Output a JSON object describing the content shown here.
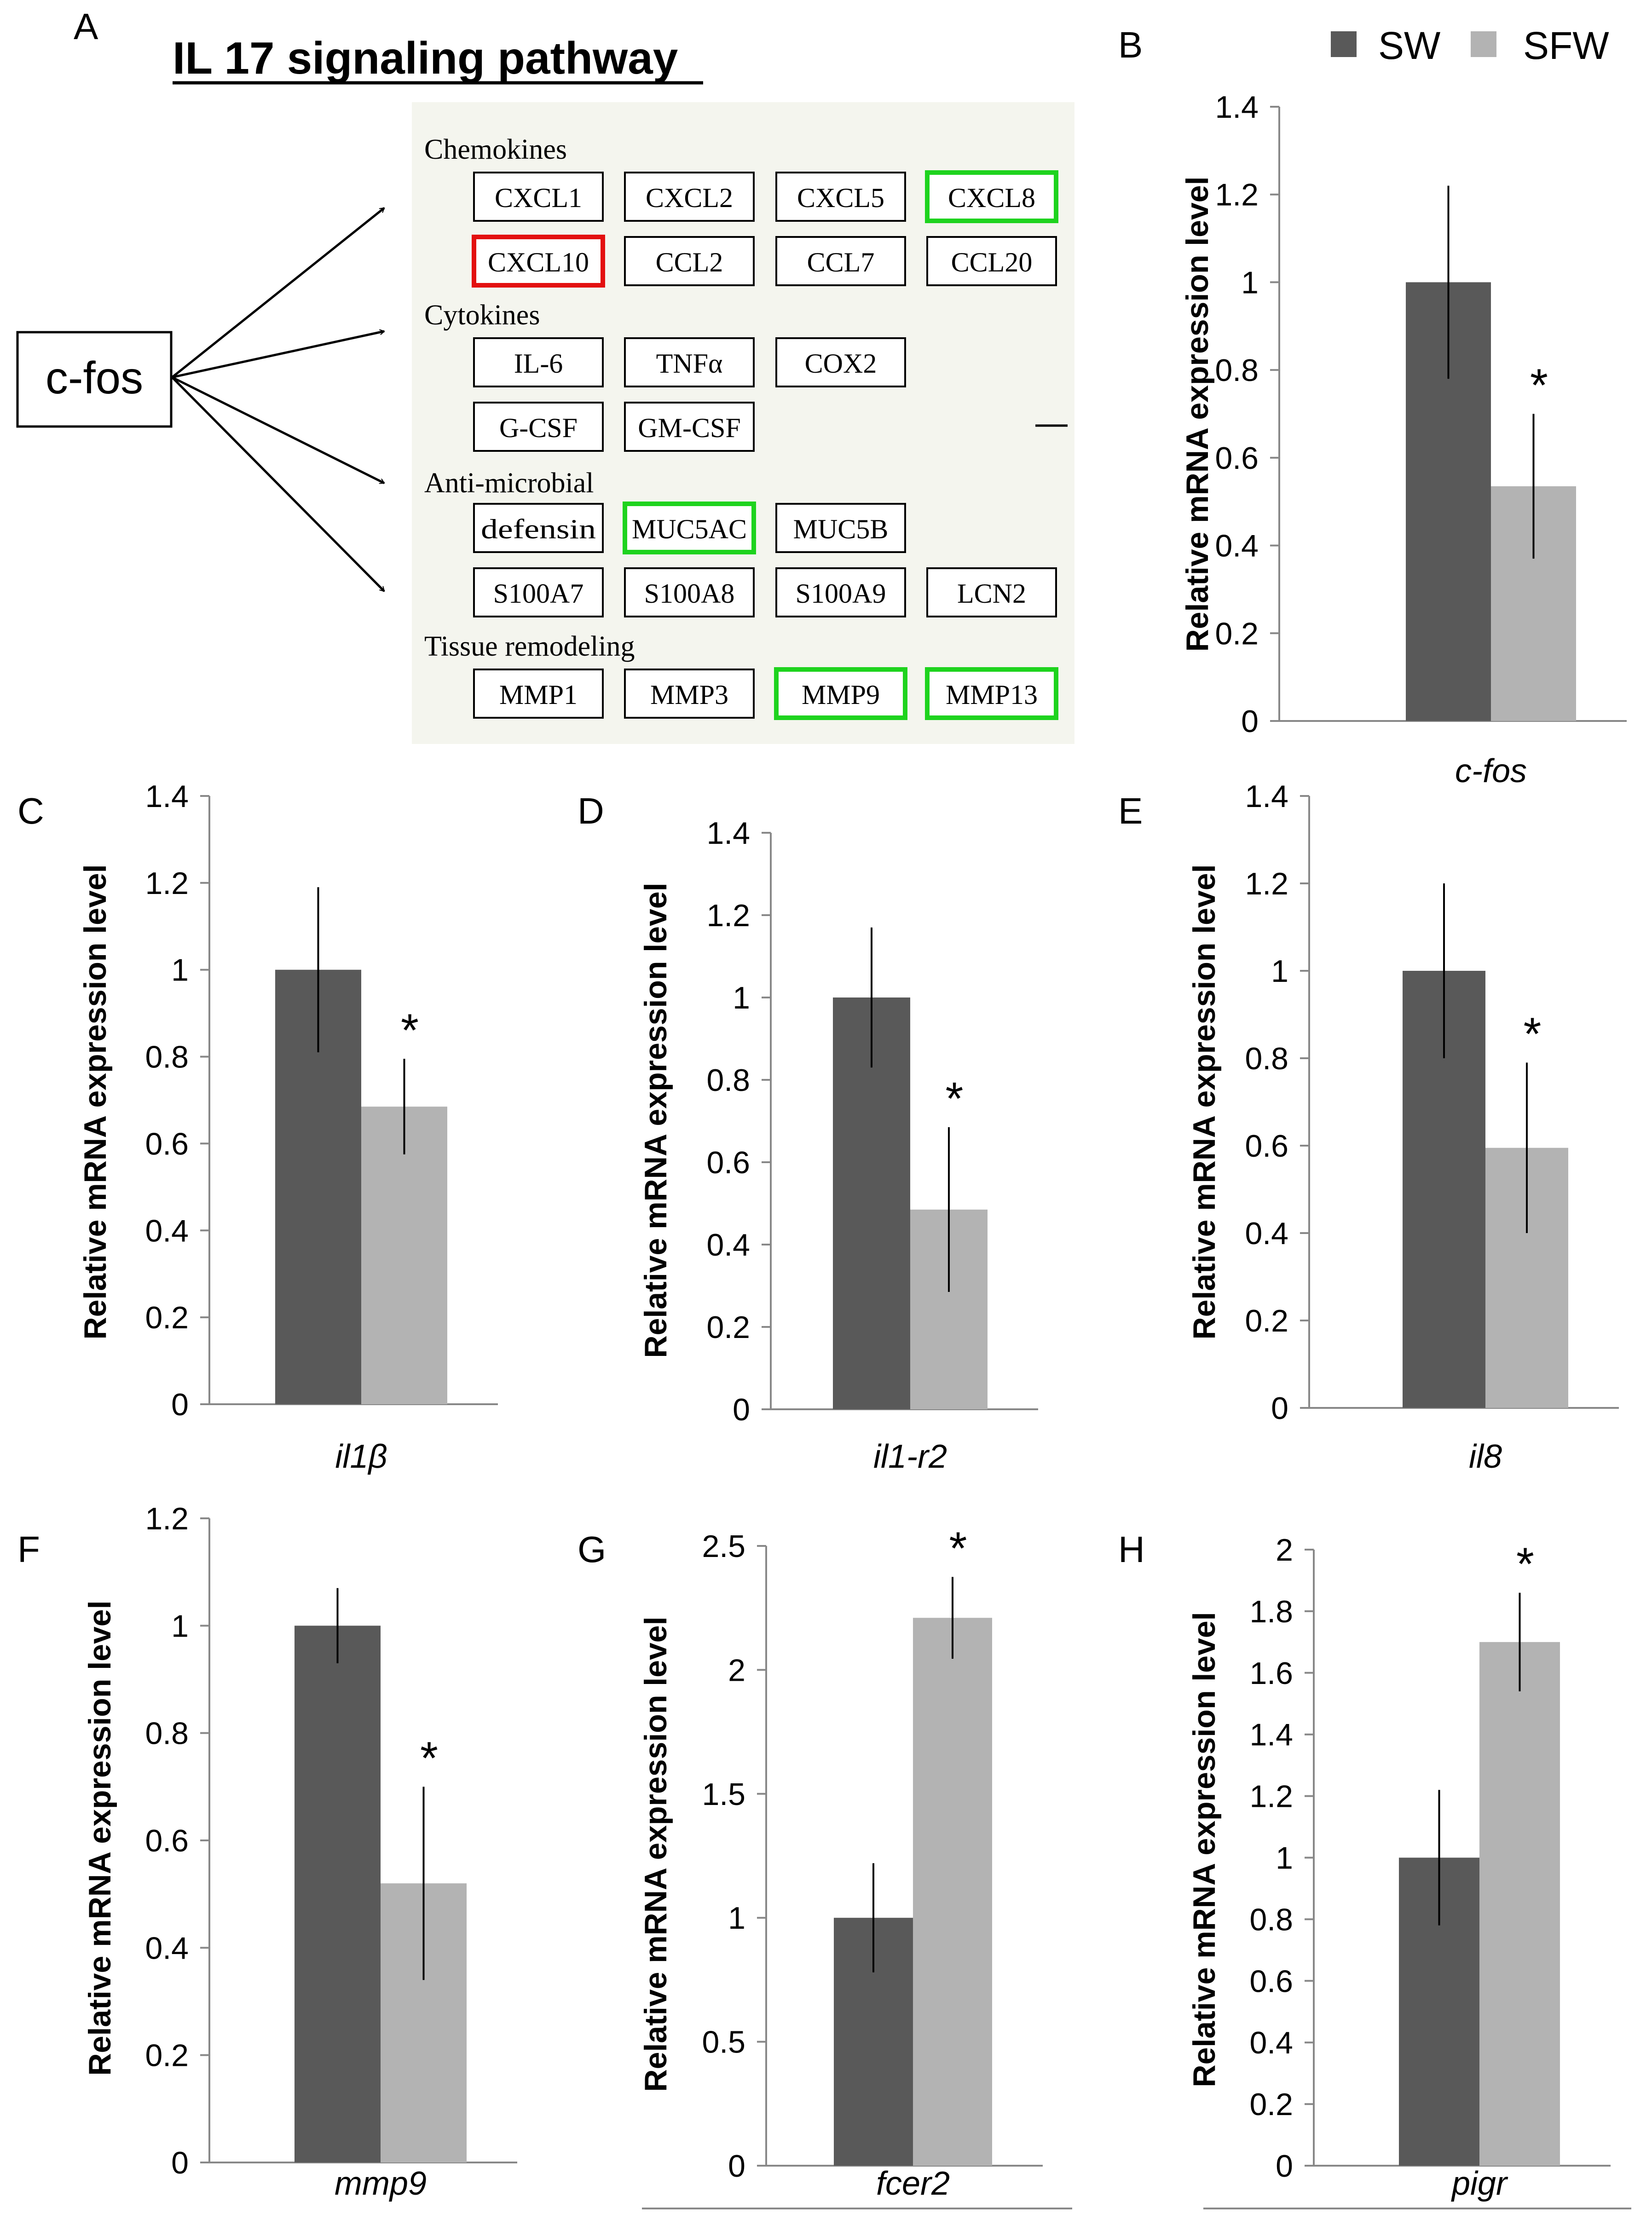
{
  "colors": {
    "sw": "#595959",
    "sfw": "#b3b3b3",
    "green_box": "#1ed31e",
    "red_box": "#e31010",
    "diagram_bg": "#f4f5ee"
  },
  "legend": {
    "sw": "SW",
    "sfw": "SFW"
  },
  "panel_a": {
    "label": "A",
    "title": "IL 17 signaling pathway",
    "source": "c-fos",
    "groups": [
      {
        "title": "Chemokines",
        "rows": [
          [
            {
              "text": "CXCL1",
              "hl": ""
            },
            {
              "text": "CXCL2",
              "hl": ""
            },
            {
              "text": "CXCL5",
              "hl": ""
            },
            {
              "text": "CXCL8",
              "hl": "green"
            }
          ],
          [
            {
              "text": "CXCL10",
              "hl": "red"
            },
            {
              "text": "CCL2",
              "hl": ""
            },
            {
              "text": "CCL7",
              "hl": ""
            },
            {
              "text": "CCL20",
              "hl": ""
            }
          ]
        ]
      },
      {
        "title": "Cytokines",
        "rows": [
          [
            {
              "text": "IL-6",
              "hl": ""
            },
            {
              "text": "TNFα",
              "hl": ""
            },
            {
              "text": "COX2",
              "hl": ""
            }
          ],
          [
            {
              "text": "G-CSF",
              "hl": ""
            },
            {
              "text": "GM-CSF",
              "hl": ""
            }
          ]
        ]
      },
      {
        "title": "Anti-microbial",
        "rows": [
          [
            {
              "text": "defensin",
              "hl": ""
            },
            {
              "text": "MUC5AC",
              "hl": "green"
            },
            {
              "text": "MUC5B",
              "hl": ""
            }
          ],
          [
            {
              "text": "S100A7",
              "hl": ""
            },
            {
              "text": "S100A8",
              "hl": ""
            },
            {
              "text": "S100A9",
              "hl": ""
            },
            {
              "text": "LCN2",
              "hl": ""
            }
          ]
        ]
      },
      {
        "title": "Tissue remodeling",
        "rows": [
          [
            {
              "text": "MMP1",
              "hl": ""
            },
            {
              "text": "MMP3",
              "hl": ""
            },
            {
              "text": "MMP9",
              "hl": "green"
            },
            {
              "text": "MMP13",
              "hl": "green"
            }
          ]
        ]
      }
    ]
  },
  "chart_data": [
    {
      "panel": "B",
      "type": "bar",
      "gene": "c-fos",
      "ylabel": "Relative mRNA expression level",
      "ylim": [
        0,
        1.4
      ],
      "ticks": [
        "0",
        "0.2",
        "0.4",
        "0.6",
        "0.8",
        "1",
        "1.2",
        "1.4"
      ],
      "series": [
        {
          "name": "SW",
          "value": 1.0,
          "error": 0.22
        },
        {
          "name": "SFW",
          "value": 0.535,
          "error": 0.165
        }
      ],
      "significance": "*"
    },
    {
      "panel": "C",
      "type": "bar",
      "gene": "il1β",
      "ylabel": "Relative mRNA expression level",
      "ylim": [
        0,
        1.4
      ],
      "ticks": [
        "0",
        "0.2",
        "0.4",
        "0.6",
        "0.8",
        "1",
        "1.2",
        "1.4"
      ],
      "series": [
        {
          "name": "SW",
          "value": 1.0,
          "error": 0.19
        },
        {
          "name": "SFW",
          "value": 0.685,
          "error": 0.11
        }
      ],
      "significance": "*"
    },
    {
      "panel": "D",
      "type": "bar",
      "gene": "il1-r2",
      "ylabel": "Relative mRNA expression level",
      "ylim": [
        0,
        1.4
      ],
      "ticks": [
        "0",
        "0.2",
        "0.4",
        "0.6",
        "0.8",
        "1",
        "1.2",
        "1.4"
      ],
      "series": [
        {
          "name": "SW",
          "value": 1.0,
          "error": 0.17
        },
        {
          "name": "SFW",
          "value": 0.485,
          "error": 0.2
        }
      ],
      "significance": "*"
    },
    {
      "panel": "E",
      "type": "bar",
      "gene": "il8",
      "ylabel": "Relative mRNA expression level",
      "ylim": [
        0,
        1.4
      ],
      "ticks": [
        "0",
        "0.2",
        "0.4",
        "0.6",
        "0.8",
        "1",
        "1.2",
        "1.4"
      ],
      "series": [
        {
          "name": "SW",
          "value": 1.0,
          "error": 0.2
        },
        {
          "name": "SFW",
          "value": 0.595,
          "error": 0.195
        }
      ],
      "significance": "*"
    },
    {
      "panel": "F",
      "type": "bar",
      "gene": "mmp9",
      "ylabel": "Relative mRNA expression level",
      "ylim": [
        0,
        1.2
      ],
      "ticks": [
        "0",
        "0.2",
        "0.4",
        "0.6",
        "0.8",
        "1",
        "1.2"
      ],
      "series": [
        {
          "name": "SW",
          "value": 1.0,
          "error": 0.07
        },
        {
          "name": "SFW",
          "value": 0.52,
          "error": 0.18
        }
      ],
      "significance": "*"
    },
    {
      "panel": "G",
      "type": "bar",
      "gene": "fcer2",
      "ylabel": "Relative mRNA expression level",
      "ylim": [
        0,
        2.5
      ],
      "ticks": [
        "0",
        "0.5",
        "1",
        "1.5",
        "2",
        "2.5"
      ],
      "series": [
        {
          "name": "SW",
          "value": 1.0,
          "error": 0.22
        },
        {
          "name": "SFW",
          "value": 2.21,
          "error": 0.165
        }
      ],
      "significance": "*"
    },
    {
      "panel": "H",
      "type": "bar",
      "gene": "pigr",
      "ylabel": "Relative mRNA expression level",
      "ylim": [
        0,
        2
      ],
      "ticks": [
        "0",
        "0.2",
        "0.4",
        "0.6",
        "0.8",
        "1",
        "1.2",
        "1.4",
        "1.6",
        "1.8",
        "2"
      ],
      "series": [
        {
          "name": "SW",
          "value": 1.0,
          "error": 0.22
        },
        {
          "name": "SFW",
          "value": 1.7,
          "error": 0.16
        }
      ],
      "significance": "*"
    }
  ]
}
